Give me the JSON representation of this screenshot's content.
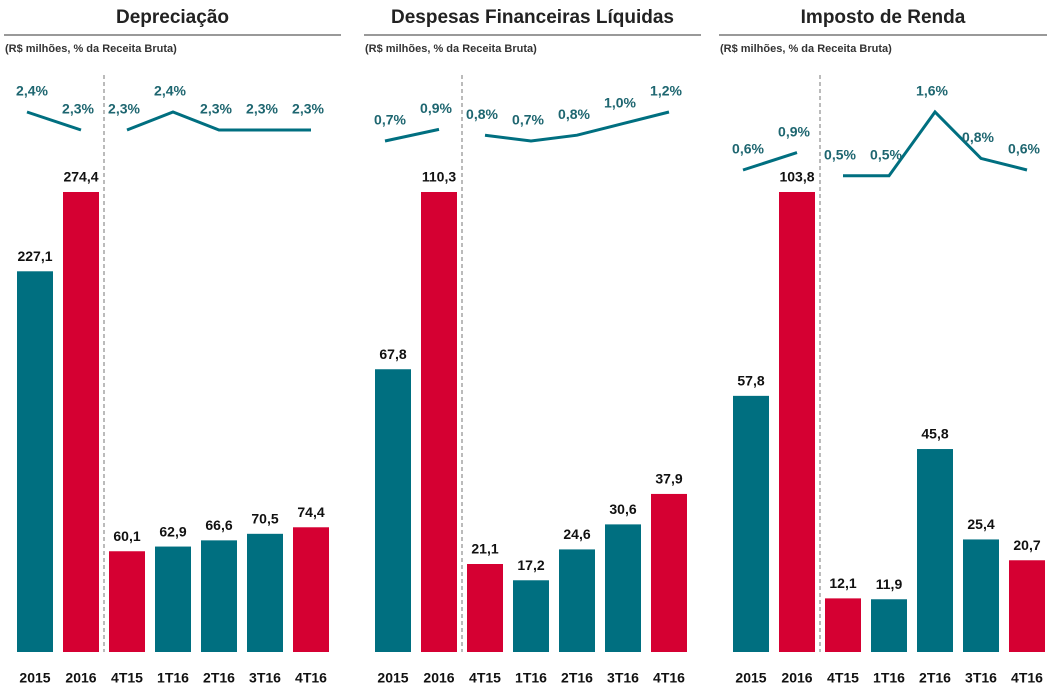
{
  "chart_data": [
    {
      "type": "bar-line",
      "title": "Depreciação",
      "subtitle": "(R$ milhões, % da Receita Bruta)",
      "categories": [
        "2015",
        "2016",
        "4T15",
        "1T16",
        "2T16",
        "3T16",
        "4T16"
      ],
      "bars": {
        "values": [
          227.1,
          274.4,
          60.1,
          62.9,
          66.6,
          70.5,
          74.4
        ],
        "value_labels": [
          "227,1",
          "274,4",
          "60,1",
          "62,9",
          "66,6",
          "70,5",
          "74,4"
        ],
        "colors": [
          "#006f80",
          "#d50032",
          "#d50032",
          "#006f80",
          "#006f80",
          "#006f80",
          "#d50032"
        ]
      },
      "line": {
        "values": [
          2.4,
          2.3,
          2.3,
          2.4,
          2.3,
          2.3,
          2.3
        ],
        "value_labels": [
          "2,4%",
          "2,3%",
          "2,3%",
          "2,4%",
          "2,3%",
          "2,3%",
          "2,3%"
        ],
        "color": "#006f80"
      }
    },
    {
      "type": "bar-line",
      "title": "Despesas Financeiras Líquidas",
      "subtitle": "(R$ milhões, % da Receita Bruta)",
      "categories": [
        "2015",
        "2016",
        "4T15",
        "1T16",
        "2T16",
        "3T16",
        "4T16"
      ],
      "bars": {
        "values": [
          67.8,
          110.3,
          21.1,
          17.2,
          24.6,
          30.6,
          37.9
        ],
        "value_labels": [
          "67,8",
          "110,3",
          "21,1",
          "17,2",
          "24,6",
          "30,6",
          "37,9"
        ],
        "colors": [
          "#006f80",
          "#d50032",
          "#d50032",
          "#006f80",
          "#006f80",
          "#006f80",
          "#d50032"
        ]
      },
      "line": {
        "values": [
          0.7,
          0.9,
          0.8,
          0.7,
          0.8,
          1.0,
          1.2
        ],
        "value_labels": [
          "0,7%",
          "0,9%",
          "0,8%",
          "0,7%",
          "0,8%",
          "1,0%",
          "1,2%"
        ],
        "color": "#006f80"
      }
    },
    {
      "type": "bar-line",
      "title": "Imposto de Renda",
      "subtitle": "(R$ milhões, % da Receita Bruta)",
      "categories": [
        "2015",
        "2016",
        "4T15",
        "1T16",
        "2T16",
        "3T16",
        "4T16"
      ],
      "bars": {
        "values": [
          57.8,
          103.8,
          12.1,
          11.9,
          45.8,
          25.4,
          20.7
        ],
        "value_labels": [
          "57,8",
          "103,8",
          "12,1",
          "11,9",
          "45,8",
          "25,4",
          "20,7"
        ],
        "colors": [
          "#006f80",
          "#d50032",
          "#d50032",
          "#006f80",
          "#006f80",
          "#006f80",
          "#d50032"
        ]
      },
      "line": {
        "values": [
          0.6,
          0.9,
          0.5,
          0.5,
          1.6,
          0.8,
          0.6
        ],
        "value_labels": [
          "0,6%",
          "0,9%",
          "0,5%",
          "0,5%",
          "1,6%",
          "0,8%",
          "0,6%"
        ],
        "color": "#006f80"
      }
    }
  ]
}
